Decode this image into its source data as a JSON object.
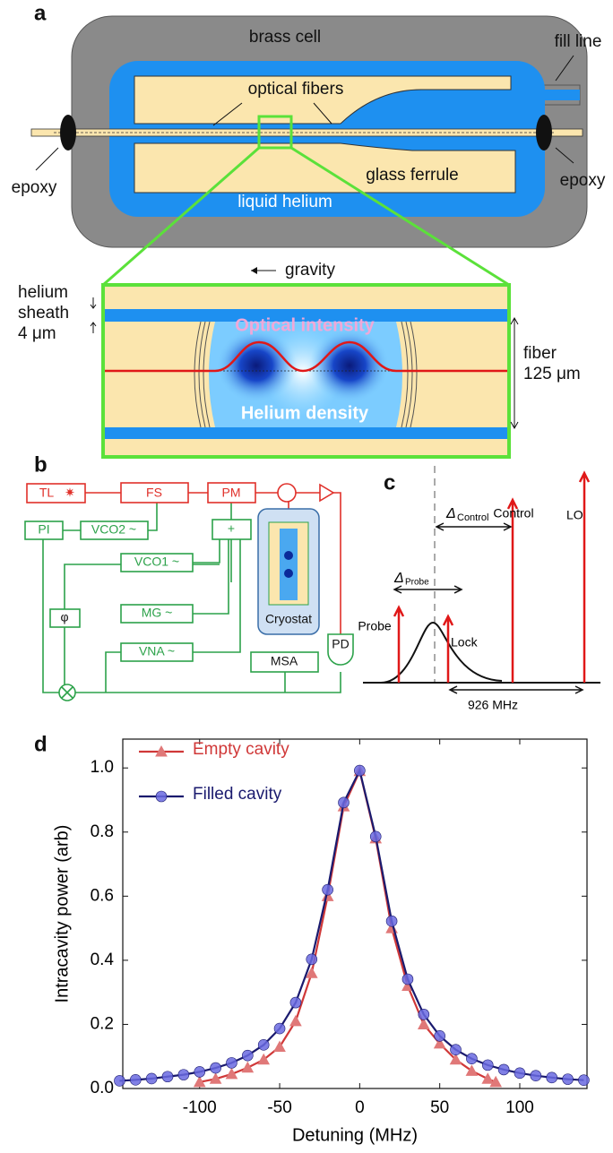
{
  "panel_a": {
    "label": "a",
    "brass_cell": "brass cell",
    "fill_line": "fill line",
    "optical_fibers": "optical fibers",
    "epoxy_left": "epoxy",
    "epoxy_right": "epoxy",
    "glass_ferrule": "glass ferrule",
    "liquid_helium": "liquid helium",
    "gravity": "gravity",
    "helium_sheath": [
      "helium",
      "sheath",
      "4 μm"
    ],
    "fiber": [
      "fiber",
      "125 μm"
    ],
    "optical_intensity": "Optical intensity",
    "helium_density": "Helium density"
  },
  "panel_b": {
    "label": "b",
    "blocks": {
      "tl": "TL",
      "fs": "FS",
      "pm": "PM",
      "pi": "PI",
      "vco2": "VCO2 ~",
      "plus": "+",
      "vco1": "VCO1 ~",
      "mg": "MG ~",
      "phi": "φ",
      "vna": "VNA ~",
      "msa": "MSA",
      "pd": "PD",
      "cryostat": "Cryostat"
    }
  },
  "panel_c": {
    "label": "c",
    "lo": "LO",
    "control": "Control",
    "probe": "Probe",
    "lock": "Lock",
    "delta_control": {
      "symbol": "Δ",
      "subscript": "Control"
    },
    "delta_probe": {
      "symbol": "Δ",
      "subscript": "Probe"
    },
    "spacing": "926 MHz"
  },
  "chart_data": {
    "type": "line",
    "panel_label": "d",
    "x_label": "Detuning (MHz)",
    "y_label": "Intracavity power (arb)",
    "xlim": [
      -148,
      142
    ],
    "ylim": [
      0,
      1.09
    ],
    "xticks": [
      -100,
      -50,
      0,
      50,
      100
    ],
    "yticks": [
      {
        "value": 0,
        "label": "0.0"
      },
      0.2,
      0.4,
      0.6,
      0.8,
      {
        "value": 1,
        "label": "1.0"
      }
    ],
    "legend": "upper left",
    "series": [
      {
        "name": "Empty cavity",
        "color": "#d03838",
        "marker_color": "#e07878",
        "marker": "triangle",
        "x": [
          -100,
          -90,
          -80,
          -70,
          -60,
          -50,
          -40,
          -30,
          -20,
          -10,
          0,
          10,
          20,
          30,
          40,
          50,
          60,
          70,
          80,
          85
        ],
        "values": [
          0.02,
          0.03,
          0.045,
          0.065,
          0.09,
          0.13,
          0.21,
          0.36,
          0.6,
          0.88,
          0.99,
          0.78,
          0.5,
          0.32,
          0.2,
          0.14,
          0.09,
          0.055,
          0.03,
          0.02
        ]
      },
      {
        "name": "Filled cavity",
        "color": "#1a1a6e",
        "marker_color": "#6a6ae0",
        "marker": "circle",
        "x": [
          -150,
          -140,
          -130,
          -120,
          -110,
          -100,
          -90,
          -80,
          -70,
          -60,
          -50,
          -40,
          -30,
          -20,
          -10,
          0,
          10,
          20,
          30,
          40,
          50,
          60,
          70,
          80,
          90,
          100,
          110,
          120,
          130,
          140
        ],
        "values": [
          0.024,
          0.027,
          0.031,
          0.037,
          0.043,
          0.052,
          0.064,
          0.08,
          0.103,
          0.136,
          0.187,
          0.268,
          0.403,
          0.62,
          0.892,
          0.992,
          0.786,
          0.522,
          0.341,
          0.231,
          0.164,
          0.121,
          0.093,
          0.073,
          0.059,
          0.048,
          0.04,
          0.034,
          0.029,
          0.026
        ]
      }
    ]
  }
}
